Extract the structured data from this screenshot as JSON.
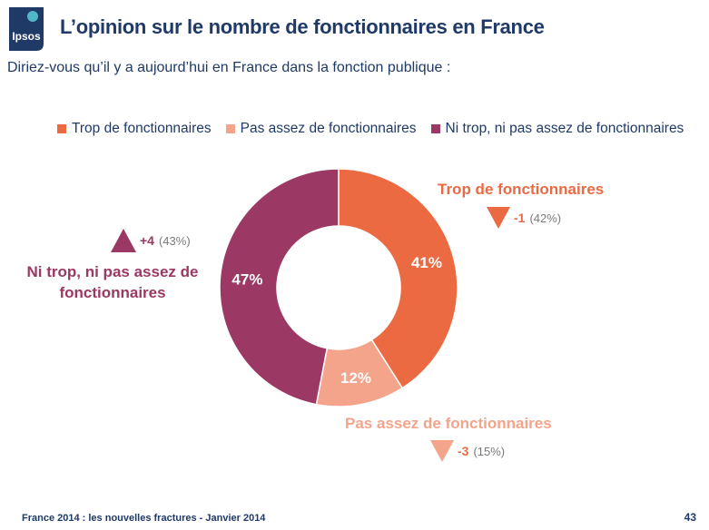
{
  "header": {
    "logo_text": "Ipsos",
    "title": "L’opinion sur le nombre de fonctionnaires en France",
    "subtitle": "Diriez-vous qu’il y a aujourd’hui en France dans la fonction publique :"
  },
  "colors": {
    "trop": "#eb6a42",
    "pas_assez": "#f3a48a",
    "ni_trop": "#9b3864",
    "brand": "#1f3a67"
  },
  "chart_data": {
    "type": "pie",
    "donut": true,
    "legend_position": "top",
    "categories": [
      "Trop de fonctionnaires",
      "Pas assez de fonctionnaires",
      "Ni trop, ni pas assez de fonctionnaires"
    ],
    "values": [
      41,
      12,
      47
    ],
    "value_labels": [
      "41%",
      "12%",
      "47%"
    ],
    "annotations": [
      {
        "label": "Trop de fonctionnaires",
        "direction": "down",
        "change": "-1",
        "previous": "(42%)"
      },
      {
        "label": "Pas assez de fonctionnaires",
        "direction": "down",
        "change": "-3",
        "previous": "(15%)"
      },
      {
        "label": "Ni trop, ni pas assez de fonctionnaires",
        "label_lines": [
          "Ni trop, ni pas assez de",
          "fonctionnaires"
        ],
        "direction": "up",
        "change": "+4",
        "previous": "(43%)"
      }
    ]
  },
  "footer": {
    "source": "France 2014 : les nouvelles fractures - Janvier 2014",
    "page_number": "43"
  }
}
